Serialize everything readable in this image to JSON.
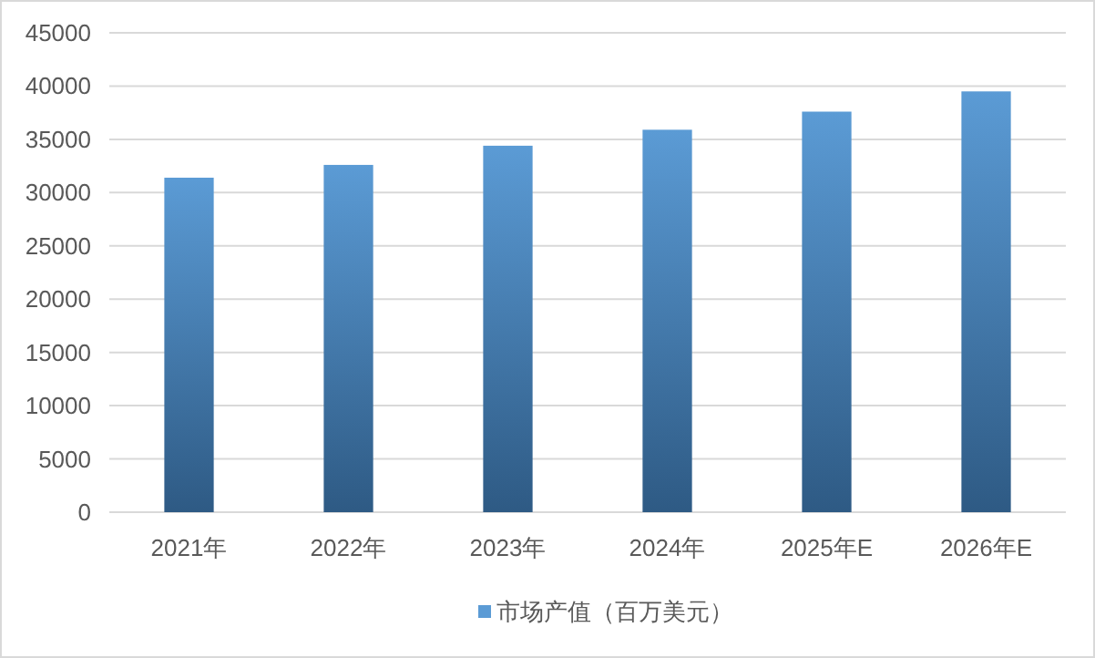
{
  "chart_data": {
    "type": "bar",
    "categories": [
      "2021年",
      "2022年",
      "2023年",
      "2024年",
      "2025年E",
      "2026年E"
    ],
    "series": [
      {
        "name": "市场产值（百万美元）",
        "color": "#5b9bd5",
        "values": [
          31400,
          32600,
          34400,
          35900,
          37600,
          39500
        ]
      }
    ],
    "ylim": [
      0,
      45000
    ],
    "yticks": [
      0,
      5000,
      10000,
      15000,
      20000,
      25000,
      30000,
      35000,
      40000,
      45000
    ],
    "grid": "y",
    "legend": "bottom"
  }
}
